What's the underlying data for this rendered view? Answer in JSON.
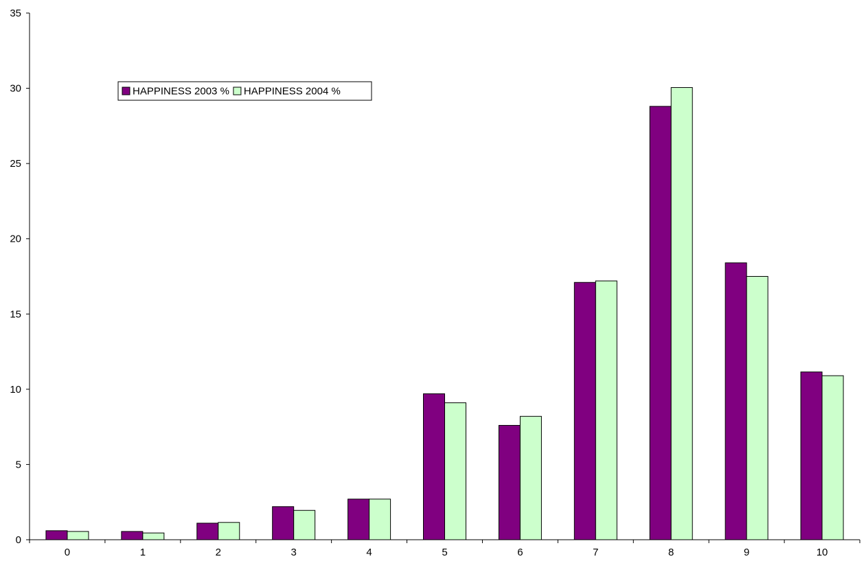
{
  "chart_data": {
    "type": "bar",
    "title": "",
    "xlabel": "",
    "ylabel": "",
    "categories": [
      "0",
      "1",
      "2",
      "3",
      "4",
      "5",
      "6",
      "7",
      "8",
      "9",
      "10"
    ],
    "series": [
      {
        "name": "HAPPINESS 2003 %",
        "color": "#800080",
        "values": [
          0.6,
          0.55,
          1.1,
          2.2,
          2.7,
          9.7,
          7.6,
          17.1,
          28.8,
          18.4,
          11.15
        ]
      },
      {
        "name": "HAPPINESS 2004 %",
        "color": "#ccffcc",
        "values": [
          0.55,
          0.45,
          1.15,
          1.95,
          2.7,
          9.1,
          8.2,
          17.2,
          30.05,
          17.5,
          10.9
        ]
      }
    ],
    "ylim": [
      0,
      35
    ],
    "yticks": [
      0,
      5,
      10,
      15,
      20,
      25,
      30,
      35
    ],
    "grid": false,
    "legend": "top-left"
  }
}
